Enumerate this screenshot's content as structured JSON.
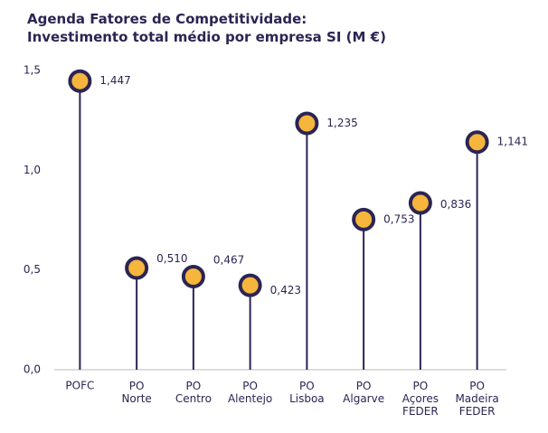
{
  "chart_data": {
    "type": "lollipop",
    "title": "Agenda Fatores de Competitividade:",
    "subtitle": "Investimento total médio por empresa SI (M €)",
    "categories": [
      "POFC",
      "PO\nNorte",
      "PO\nCentro",
      "PO\nAlentejo",
      "PO\nLisboa",
      "PO\nAlgarve",
      "PO\nAçores\nFEDER",
      "PO\nMadeira\nFEDER"
    ],
    "values": [
      1.447,
      0.51,
      0.467,
      0.423,
      1.235,
      0.753,
      0.836,
      1.141
    ],
    "value_labels": [
      "1,447",
      "0,510",
      "0,467",
      "0,423",
      "1,235",
      "0,753",
      "0,836",
      "1,141"
    ],
    "color": "#f6b53c",
    "stem_color": "#2b2553",
    "ylim": [
      0,
      1.5
    ],
    "yticks": [
      {
        "value": 0,
        "label": "0,0"
      },
      {
        "value": 0.5,
        "label": "0,5"
      },
      {
        "value": 1,
        "label": "1,0"
      },
      {
        "value": 1.5,
        "label": "1,5"
      }
    ],
    "grid": false
  }
}
